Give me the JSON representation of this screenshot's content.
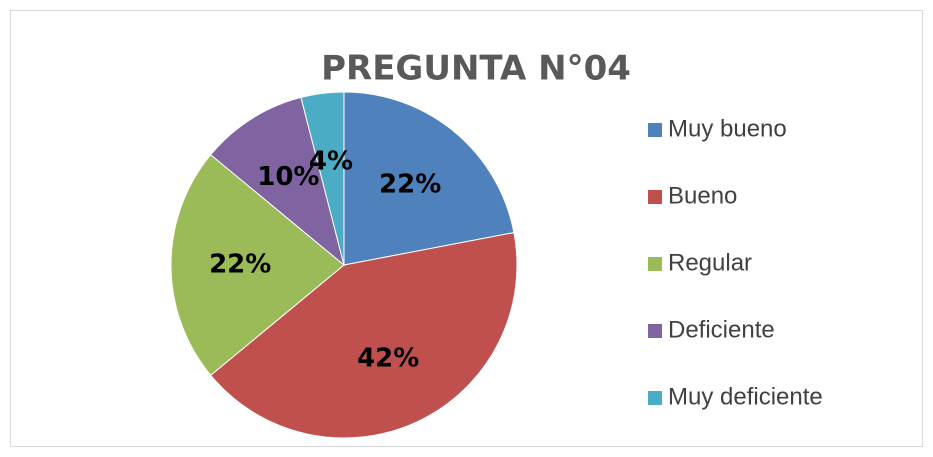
{
  "chart_data": {
    "type": "pie",
    "title": "PREGUNTA N°04",
    "categories": [
      "Muy bueno",
      "Bueno",
      "Regular",
      "Deficiente",
      "Muy deficiente"
    ],
    "values": [
      22,
      42,
      22,
      10,
      4
    ],
    "value_labels": [
      "22%",
      "42%",
      "22%",
      "10%",
      "4%"
    ],
    "colors": [
      "#4f81bd",
      "#c0504d",
      "#9bbb59",
      "#8064a2",
      "#4bacc6"
    ],
    "legend": "right"
  }
}
